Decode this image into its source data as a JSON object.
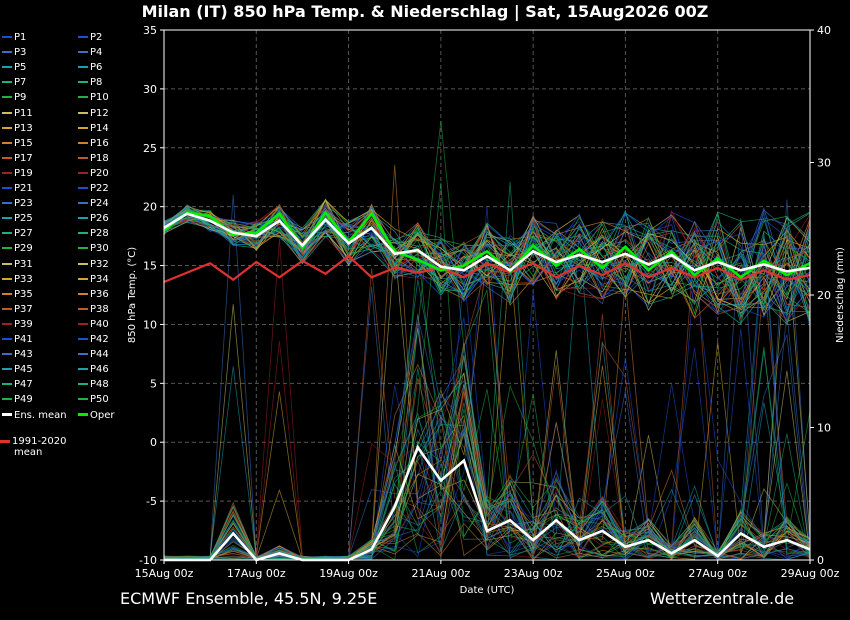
{
  "header": {
    "title": "Milan  (IT)  850 hPa Temp. & Niederschlag | Sat, 15Aug2026 00Z"
  },
  "footer": {
    "model": "ECMWF Ensemble, 45.5N, 9.25E",
    "site": "Wetterzentrale.de"
  },
  "legend": {
    "members": [
      {
        "label": "P1",
        "color": "#1a4fd6"
      },
      {
        "label": "P2",
        "color": "#1a4fd6"
      },
      {
        "label": "P3",
        "color": "#3a6fc4"
      },
      {
        "label": "P4",
        "color": "#3a6fc4"
      },
      {
        "label": "P5",
        "color": "#1aa0b0"
      },
      {
        "label": "P6",
        "color": "#1aa0b0"
      },
      {
        "label": "P7",
        "color": "#1ab080"
      },
      {
        "label": "P8",
        "color": "#1ab080"
      },
      {
        "label": "P9",
        "color": "#22b040"
      },
      {
        "label": "P10",
        "color": "#22b040"
      },
      {
        "label": "P11",
        "color": "#c8c060"
      },
      {
        "label": "P12",
        "color": "#c8c060"
      },
      {
        "label": "P13",
        "color": "#d0a830"
      },
      {
        "label": "P14",
        "color": "#d0a830"
      },
      {
        "label": "P15",
        "color": "#d08030"
      },
      {
        "label": "P16",
        "color": "#d08030"
      },
      {
        "label": "P17",
        "color": "#c05a28"
      },
      {
        "label": "P18",
        "color": "#c05a28"
      },
      {
        "label": "P19",
        "color": "#a02020"
      },
      {
        "label": "P20",
        "color": "#a02020"
      },
      {
        "label": "P21",
        "color": "#1a4fd6"
      },
      {
        "label": "P22",
        "color": "#1a4fd6"
      },
      {
        "label": "P23",
        "color": "#3a6fc4"
      },
      {
        "label": "P24",
        "color": "#3a6fc4"
      },
      {
        "label": "P25",
        "color": "#1aa0b0"
      },
      {
        "label": "P26",
        "color": "#1aa0b0"
      },
      {
        "label": "P27",
        "color": "#1ab080"
      },
      {
        "label": "P28",
        "color": "#1ab080"
      },
      {
        "label": "P29",
        "color": "#22b040"
      },
      {
        "label": "P30",
        "color": "#22b040"
      },
      {
        "label": "P31",
        "color": "#c8c060"
      },
      {
        "label": "P32",
        "color": "#c8c060"
      },
      {
        "label": "P33",
        "color": "#d0a830"
      },
      {
        "label": "P34",
        "color": "#d0a830"
      },
      {
        "label": "P35",
        "color": "#d08030"
      },
      {
        "label": "P36",
        "color": "#d08030"
      },
      {
        "label": "P37",
        "color": "#c05a28"
      },
      {
        "label": "P38",
        "color": "#c05a28"
      },
      {
        "label": "P39",
        "color": "#a02020"
      },
      {
        "label": "P40",
        "color": "#a02020"
      },
      {
        "label": "P41",
        "color": "#1a4fd6"
      },
      {
        "label": "P42",
        "color": "#1a4fd6"
      },
      {
        "label": "P43",
        "color": "#3a6fc4"
      },
      {
        "label": "P44",
        "color": "#3a6fc4"
      },
      {
        "label": "P45",
        "color": "#1aa0b0"
      },
      {
        "label": "P46",
        "color": "#1aa0b0"
      },
      {
        "label": "P47",
        "color": "#1ab080"
      },
      {
        "label": "P48",
        "color": "#1ab080"
      },
      {
        "label": "P49",
        "color": "#22b040"
      },
      {
        "label": "P50",
        "color": "#22b040"
      },
      {
        "label": "Ens. mean",
        "color": "#ffffff"
      },
      {
        "label": "Oper",
        "color": "#00ee00"
      }
    ],
    "climatology_line1": "1991-2020",
    "climatology_line2": "mean",
    "climatology_color": "#e03030"
  },
  "chart_data": {
    "type": "line",
    "title": "Milan  (IT)  850 hPa Temp. & Niederschlag | Sat, 15Aug2026 00Z",
    "xlabel": "Date (UTC)",
    "ylabel": "850 hPa Temp. (°C)",
    "y2label": "Niederschlag (mm)",
    "ylim": [
      -10,
      35
    ],
    "y2lim": [
      0,
      40
    ],
    "yticks": [
      -10,
      -5,
      0,
      5,
      10,
      15,
      20,
      25,
      30,
      35
    ],
    "y2ticks": [
      0,
      10,
      20,
      30,
      40
    ],
    "xlim_hours": [
      0,
      336
    ],
    "xtick_labels": [
      "15Aug 00z",
      "17Aug 00z",
      "19Aug 00z",
      "21Aug 00z",
      "23Aug 00z",
      "25Aug 00z",
      "27Aug 00z",
      "29Aug 00z"
    ],
    "grid": true,
    "series": [
      {
        "name": "Ens. mean",
        "axis": "temp",
        "color": "#ffffff",
        "x": [
          0,
          12,
          24,
          36,
          48,
          60,
          72,
          84,
          96,
          108,
          120,
          132,
          144,
          156,
          168,
          180,
          192,
          204,
          216,
          228,
          240,
          252,
          264,
          276,
          288,
          300,
          312,
          324,
          336
        ],
        "values": [
          18.2,
          19.4,
          18.8,
          17.8,
          17.5,
          18.8,
          16.7,
          18.9,
          16.9,
          18.2,
          16.0,
          16.3,
          14.9,
          14.6,
          15.8,
          14.6,
          16.2,
          15.3,
          15.9,
          15.3,
          16.0,
          15.1,
          15.9,
          14.6,
          15.3,
          14.6,
          15.1,
          14.5,
          14.8
        ]
      },
      {
        "name": "Oper",
        "axis": "temp",
        "color": "#00ee00",
        "x": [
          0,
          12,
          24,
          36,
          48,
          60,
          72,
          84,
          96,
          108,
          120,
          132,
          144,
          156,
          168,
          180,
          192,
          204,
          216,
          228,
          240,
          252,
          264,
          276,
          288,
          300,
          312,
          324,
          336
        ],
        "values": [
          18.0,
          19.5,
          19.2,
          17.6,
          17.8,
          19.4,
          16.5,
          19.5,
          17.0,
          19.4,
          16.2,
          15.5,
          14.6,
          15.0,
          16.2,
          14.5,
          16.7,
          15.0,
          16.4,
          14.8,
          16.6,
          14.6,
          16.2,
          14.2,
          15.6,
          14.0,
          15.4,
          14.2,
          15.2
        ]
      },
      {
        "name": "1991-2020 mean",
        "axis": "temp",
        "color": "#e03030",
        "x": [
          0,
          12,
          24,
          36,
          48,
          60,
          72,
          84,
          96,
          108,
          120,
          132,
          144,
          156,
          168,
          180,
          192,
          204,
          216,
          228,
          240,
          252,
          264,
          276,
          288,
          300,
          312,
          324,
          336
        ],
        "values": [
          13.6,
          14.4,
          15.2,
          13.8,
          15.3,
          14.0,
          15.4,
          14.3,
          15.8,
          14.0,
          14.8,
          14.4,
          14.8,
          14.0,
          15.2,
          14.4,
          15.2,
          14.0,
          15.0,
          14.2,
          15.2,
          14.0,
          14.8,
          14.0,
          14.8,
          13.8,
          14.6,
          13.8,
          14.2
        ]
      },
      {
        "name": "Ens. mean precipitation",
        "axis": "precip",
        "color": "#ffffff",
        "x": [
          0,
          12,
          24,
          36,
          48,
          60,
          72,
          84,
          96,
          108,
          120,
          132,
          144,
          156,
          168,
          180,
          192,
          204,
          216,
          228,
          240,
          252,
          264,
          276,
          288,
          300,
          312,
          324,
          336
        ],
        "values": [
          0,
          0,
          0,
          2.0,
          0,
          0.5,
          0,
          0,
          0,
          0.8,
          4.0,
          8.5,
          6.0,
          7.5,
          2.2,
          3.0,
          1.5,
          3.0,
          1.5,
          2.2,
          1.0,
          1.5,
          0.5,
          1.5,
          0.3,
          2.0,
          1.0,
          1.5,
          0.8
        ]
      }
    ]
  }
}
